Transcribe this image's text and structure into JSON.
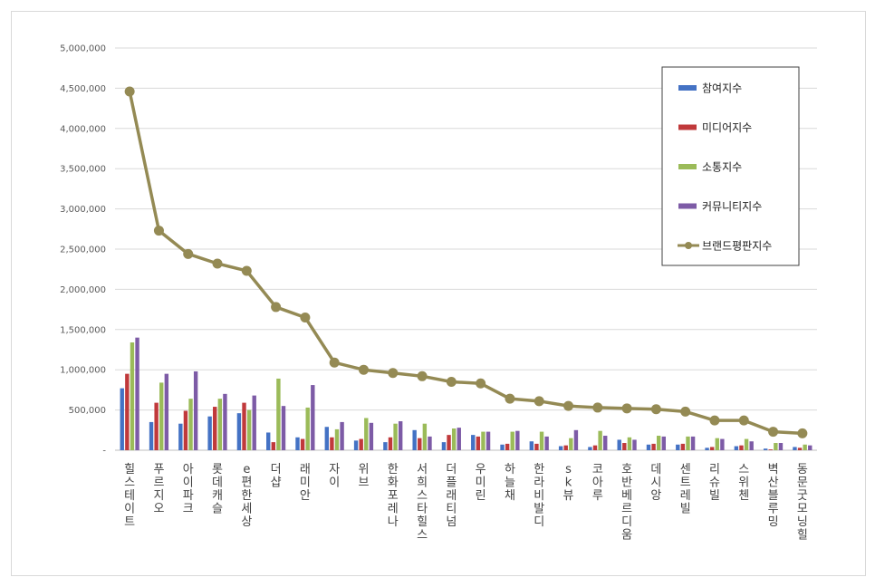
{
  "chart_data": {
    "type": "bar",
    "categories": [
      "힐스테이트",
      "푸르지오",
      "아이파크",
      "롯데캐슬",
      "e편한세상",
      "더샵",
      "래미안",
      "자이",
      "위브",
      "한화포레나",
      "서희스타힐스",
      "더플래티넘",
      "우미린",
      "하늘채",
      "한라비발디",
      "sk뷰",
      "코아루",
      "호반베르디움",
      "데시앙",
      "센트레빌",
      "리슈빌",
      "스위첸",
      "벽산블루밍",
      "동문굿모닝힐"
    ],
    "yticks": [
      "-",
      "500,000",
      "1,000,000",
      "1,500,000",
      "2,000,000",
      "2,500,000",
      "3,000,000",
      "3,500,000",
      "4,000,000",
      "4,500,000",
      "5,000,000"
    ],
    "ylim": [
      0,
      5000000
    ],
    "grid": true,
    "legend_position": "right",
    "series": [
      {
        "name": "참여지수",
        "kind": "bar",
        "color": "#4472c4",
        "values": [
          770000,
          350000,
          330000,
          420000,
          460000,
          220000,
          160000,
          290000,
          120000,
          100000,
          250000,
          100000,
          190000,
          70000,
          110000,
          50000,
          40000,
          130000,
          70000,
          70000,
          30000,
          50000,
          20000,
          40000
        ]
      },
      {
        "name": "미디어지수",
        "kind": "bar",
        "color": "#c0393b",
        "values": [
          950000,
          590000,
          490000,
          540000,
          590000,
          100000,
          140000,
          160000,
          140000,
          160000,
          150000,
          190000,
          170000,
          80000,
          80000,
          60000,
          60000,
          90000,
          80000,
          80000,
          40000,
          60000,
          10000,
          30000
        ]
      },
      {
        "name": "소통지수",
        "kind": "bar",
        "color": "#9bbb59",
        "values": [
          1340000,
          840000,
          640000,
          640000,
          500000,
          890000,
          530000,
          260000,
          400000,
          330000,
          330000,
          270000,
          230000,
          230000,
          230000,
          150000,
          240000,
          160000,
          180000,
          170000,
          150000,
          140000,
          90000,
          70000
        ]
      },
      {
        "name": "커뮤니티지수",
        "kind": "bar",
        "color": "#7d5ba6",
        "values": [
          1400000,
          950000,
          980000,
          700000,
          680000,
          550000,
          810000,
          350000,
          340000,
          360000,
          170000,
          280000,
          230000,
          240000,
          170000,
          250000,
          180000,
          130000,
          170000,
          170000,
          140000,
          110000,
          90000,
          60000
        ]
      },
      {
        "name": "브랜드평판지수",
        "kind": "line",
        "color": "#948a54",
        "values": [
          4460000,
          2730000,
          2440000,
          2320000,
          2230000,
          1780000,
          1650000,
          1090000,
          1000000,
          960000,
          920000,
          850000,
          830000,
          640000,
          610000,
          550000,
          530000,
          520000,
          510000,
          480000,
          370000,
          370000,
          230000,
          210000
        ]
      }
    ]
  }
}
